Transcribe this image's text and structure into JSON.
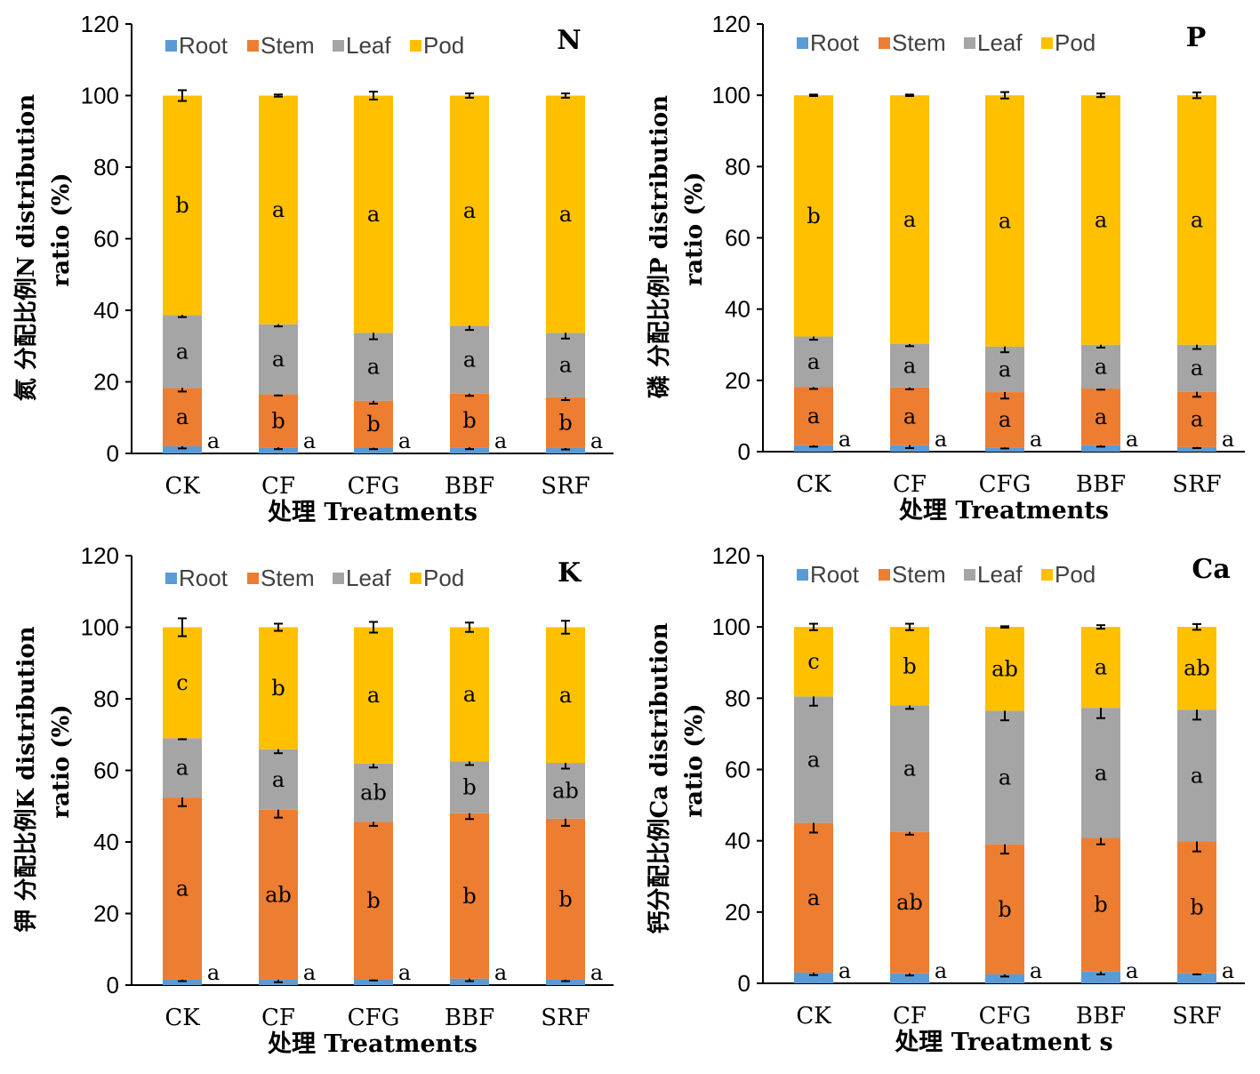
{
  "legend": {
    "items": [
      {
        "label": "Root",
        "color": "#5B9BD5"
      },
      {
        "label": "Stem",
        "color": "#ED7D31"
      },
      {
        "label": "Leaf",
        "color": "#A5A5A5"
      },
      {
        "label": "Pod",
        "color": "#FFC000"
      }
    ]
  },
  "chart_data": [
    {
      "type": "bar",
      "stacked": true,
      "panel_label": "N",
      "ylabel_line1": "氮 分配比例N distribution",
      "ylabel_line2": "ratio (%)",
      "xlabel_cn": "处理",
      "xlabel_en": "Treatments",
      "ylim": [
        0,
        120
      ],
      "yticks": [
        0,
        20,
        40,
        60,
        80,
        100,
        120
      ],
      "categories": [
        "CK",
        "CF",
        "CFG",
        "BBF",
        "SRF"
      ],
      "series": [
        {
          "name": "Root",
          "values": [
            2.0,
            1.7,
            1.6,
            1.7,
            1.5
          ],
          "errors": [
            0.6,
            0.5,
            0.4,
            0.5,
            0.4
          ],
          "letters": [
            "a",
            "a",
            "a",
            "a",
            "a"
          ]
        },
        {
          "name": "Stem",
          "values": [
            16.3,
            14.8,
            13.1,
            15.0,
            14.2
          ],
          "errors": [
            1.0,
            0.3,
            0.8,
            0.6,
            0.8
          ],
          "letters": [
            "a",
            "b",
            "b",
            "b",
            "b"
          ]
        },
        {
          "name": "Leaf",
          "values": [
            20.4,
            19.6,
            19.0,
            19.0,
            18.0
          ],
          "errors": [
            0.6,
            0.6,
            1.8,
            1.2,
            1.6
          ],
          "letters": [
            "a",
            "a",
            "a",
            "a",
            "a"
          ]
        },
        {
          "name": "Pod",
          "values": [
            61.3,
            63.9,
            66.3,
            64.3,
            66.3
          ],
          "errors": [
            1.5,
            0.3,
            1.1,
            0.6,
            0.6
          ],
          "letters": [
            "b",
            "a",
            "a",
            "a",
            "a"
          ]
        }
      ]
    },
    {
      "type": "bar",
      "stacked": true,
      "panel_label": "P",
      "ylabel_line1": "磷 分配比例P distribution",
      "ylabel_line2": "ratio (%)",
      "xlabel_cn": "处理",
      "xlabel_en": "Treatments",
      "ylim": [
        0,
        120
      ],
      "yticks": [
        0,
        20,
        40,
        60,
        80,
        100,
        120
      ],
      "categories": [
        "CK",
        "CF",
        "CFG",
        "BBF",
        "SRF"
      ],
      "series": [
        {
          "name": "Root",
          "values": [
            1.8,
            1.8,
            1.2,
            1.8,
            1.3
          ],
          "errors": [
            0.4,
            0.8,
            0.3,
            0.4,
            0.3
          ],
          "letters": [
            "a",
            "a",
            "a",
            "a",
            "a"
          ]
        },
        {
          "name": "Stem",
          "values": [
            16.3,
            16.2,
            15.5,
            15.9,
            15.5
          ],
          "errors": [
            0.5,
            0.5,
            1.8,
            0.3,
            1.4
          ],
          "letters": [
            "a",
            "a",
            "a",
            "a",
            "a"
          ]
        },
        {
          "name": "Leaf",
          "values": [
            14.2,
            12.2,
            12.8,
            12.3,
            13.2
          ],
          "errors": [
            0.9,
            0.6,
            1.6,
            0.8,
            1.2
          ],
          "letters": [
            "a",
            "a",
            "a",
            "a",
            "a"
          ]
        },
        {
          "name": "Pod",
          "values": [
            67.7,
            69.8,
            70.5,
            70.0,
            70.0
          ],
          "errors": [
            0.2,
            0.2,
            0.9,
            0.5,
            0.8
          ],
          "letters": [
            "b",
            "a",
            "a",
            "a",
            "a"
          ]
        }
      ]
    },
    {
      "type": "bar",
      "stacked": true,
      "panel_label": "K",
      "ylabel_line1": "钾 分配比例K distribution",
      "ylabel_line2": "ratio (%)",
      "xlabel_cn": "处理",
      "xlabel_en": "Treatments",
      "ylim": [
        0,
        120
      ],
      "yticks": [
        0,
        20,
        40,
        60,
        80,
        100,
        120
      ],
      "categories": [
        "CK",
        "CF",
        "CFG",
        "BBF",
        "SRF"
      ],
      "series": [
        {
          "name": "Root",
          "values": [
            1.5,
            1.5,
            1.6,
            1.8,
            1.5
          ],
          "errors": [
            0.4,
            0.7,
            0.3,
            0.7,
            0.4
          ],
          "letters": [
            "a",
            "a",
            "a",
            "a",
            "a"
          ]
        },
        {
          "name": "Stem",
          "values": [
            50.9,
            47.5,
            44.0,
            46.2,
            45.0
          ],
          "errors": [
            2.4,
            2.2,
            1.1,
            1.6,
            2.0
          ],
          "letters": [
            "a",
            "ab",
            "b",
            "b",
            "b"
          ]
        },
        {
          "name": "Leaf",
          "values": [
            16.6,
            16.9,
            16.3,
            14.5,
            15.6
          ],
          "errors": [
            0.3,
            1.1,
            1.1,
            1.0,
            1.6
          ],
          "letters": [
            "a",
            "a",
            "ab",
            "b",
            "ab"
          ]
        },
        {
          "name": "Pod",
          "values": [
            31.0,
            34.1,
            38.1,
            37.5,
            37.9
          ],
          "errors": [
            2.5,
            1.0,
            1.5,
            1.3,
            1.8
          ],
          "letters": [
            "c",
            "b",
            "a",
            "a",
            "a"
          ]
        }
      ]
    },
    {
      "type": "bar",
      "stacked": true,
      "panel_label": "Ca",
      "ylabel_line1": "钙分配比例Ca distribution",
      "ylabel_line2": "ratio (%)",
      "xlabel_cn": "处理",
      "xlabel_en": "Treatment s",
      "ylim": [
        0,
        120
      ],
      "yticks": [
        0,
        20,
        40,
        60,
        80,
        100,
        120
      ],
      "categories": [
        "CK",
        "CF",
        "CFG",
        "BBF",
        "SRF"
      ],
      "series": [
        {
          "name": "Root",
          "values": [
            3.0,
            2.8,
            2.5,
            3.3,
            2.8
          ],
          "errors": [
            0.7,
            0.6,
            0.6,
            0.8,
            0.3
          ],
          "letters": [
            "a",
            "a",
            "a",
            "a",
            "a"
          ]
        },
        {
          "name": "Stem",
          "values": [
            42.0,
            39.7,
            36.5,
            37.5,
            37.0
          ],
          "errors": [
            2.7,
            0.8,
            2.6,
            1.8,
            2.8
          ],
          "letters": [
            "a",
            "ab",
            "b",
            "b",
            "b"
          ]
        },
        {
          "name": "Leaf",
          "values": [
            35.5,
            35.5,
            37.5,
            36.5,
            37.0
          ],
          "errors": [
            2.6,
            1.0,
            2.7,
            2.9,
            2.8
          ],
          "letters": [
            "a",
            "a",
            "a",
            "a",
            "a"
          ]
        },
        {
          "name": "Pod",
          "values": [
            19.5,
            22.0,
            23.5,
            22.7,
            23.2
          ],
          "errors": [
            0.9,
            0.9,
            0.2,
            0.5,
            0.8
          ],
          "letters": [
            "c",
            "b",
            "ab",
            "a",
            "ab"
          ]
        }
      ]
    }
  ]
}
